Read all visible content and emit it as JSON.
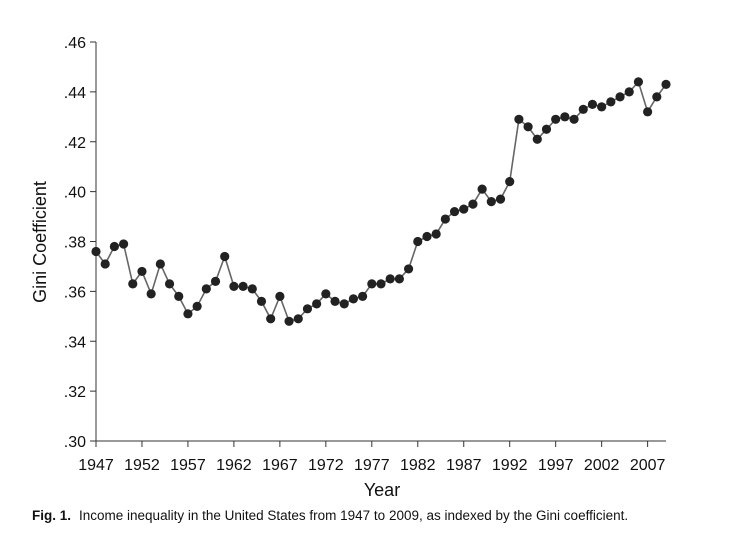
{
  "chart_data": {
    "type": "line",
    "xlabel": "Year",
    "ylabel": "Gini Coefficient",
    "xlim": [
      1947,
      2009
    ],
    "ylim": [
      0.3,
      0.46
    ],
    "x_ticks": [
      1947,
      1952,
      1957,
      1962,
      1967,
      1972,
      1977,
      1982,
      1987,
      1992,
      1997,
      2002,
      2007
    ],
    "y_ticks": [
      ".30",
      ".32",
      ".34",
      ".36",
      ".38",
      ".40",
      ".42",
      ".44",
      ".46"
    ],
    "grid": false,
    "legend": "none",
    "series": [
      {
        "color": "#222222",
        "x": [
          1947,
          1948,
          1949,
          1950,
          1951,
          1952,
          1953,
          1954,
          1955,
          1956,
          1957,
          1958,
          1959,
          1960,
          1961,
          1962,
          1963,
          1964,
          1965,
          1966,
          1967,
          1968,
          1969,
          1970,
          1971,
          1972,
          1973,
          1974,
          1975,
          1976,
          1977,
          1978,
          1979,
          1980,
          1981,
          1982,
          1983,
          1984,
          1985,
          1986,
          1987,
          1988,
          1989,
          1990,
          1991,
          1992,
          1993,
          1994,
          1995,
          1996,
          1997,
          1998,
          1999,
          2000,
          2001,
          2002,
          2003,
          2004,
          2005,
          2006,
          2007,
          2008,
          2009
        ],
        "y": [
          0.376,
          0.371,
          0.378,
          0.379,
          0.363,
          0.368,
          0.359,
          0.371,
          0.363,
          0.358,
          0.351,
          0.354,
          0.361,
          0.364,
          0.374,
          0.362,
          0.362,
          0.361,
          0.356,
          0.349,
          0.358,
          0.348,
          0.349,
          0.353,
          0.355,
          0.359,
          0.356,
          0.355,
          0.357,
          0.358,
          0.363,
          0.363,
          0.365,
          0.365,
          0.369,
          0.38,
          0.382,
          0.383,
          0.389,
          0.392,
          0.393,
          0.395,
          0.401,
          0.396,
          0.397,
          0.404,
          0.429,
          0.426,
          0.421,
          0.425,
          0.429,
          0.43,
          0.429,
          0.433,
          0.435,
          0.434,
          0.436,
          0.438,
          0.44,
          0.444,
          0.432,
          0.438,
          0.443
        ]
      }
    ]
  },
  "caption": {
    "label": "Fig. 1.",
    "text": "Income inequality in the United States from 1947 to 2009, as indexed by the Gini coefficient."
  }
}
